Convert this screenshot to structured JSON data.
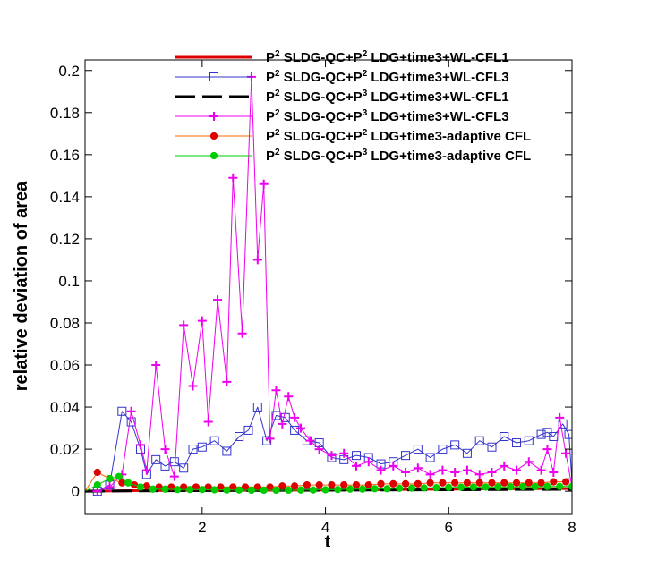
{
  "chart_data": {
    "type": "line",
    "xlabel": "t",
    "ylabel": "relative deviation of area",
    "xlim": [
      0.1,
      8.0
    ],
    "ylim": [
      -0.011,
      0.205
    ],
    "xticks": [
      {
        "v": 2,
        "label": "2"
      },
      {
        "v": 4,
        "label": "4"
      },
      {
        "v": 6,
        "label": "6"
      },
      {
        "v": 8,
        "label": "8"
      }
    ],
    "yticks": [
      {
        "v": 0,
        "label": "0"
      },
      {
        "v": 0.02,
        "label": "0.02"
      },
      {
        "v": 0.04,
        "label": "0.04"
      },
      {
        "v": 0.06,
        "label": "0.06"
      },
      {
        "v": 0.08,
        "label": "0.08"
      },
      {
        "v": 0.1,
        "label": "0.1"
      },
      {
        "v": 0.12,
        "label": "0.12"
      },
      {
        "v": 0.14,
        "label": "0.14"
      },
      {
        "v": 0.16,
        "label": "0.16"
      },
      {
        "v": 0.18,
        "label": "0.18"
      },
      {
        "v": 0.2,
        "label": "0.2"
      }
    ],
    "grid": false,
    "legend_position": "top-right",
    "series": [
      {
        "label_parts": [
          "P",
          "2",
          " SLDG-QC+P",
          "2",
          " LDG+time3+WL-CFL1"
        ],
        "color": "#dd0000",
        "dash": "",
        "width": 3,
        "marker": "none",
        "x": [
          0.1,
          1,
          2,
          3,
          4,
          5,
          6,
          7,
          8
        ],
        "y": [
          0,
          0.0003,
          0.0004,
          0.0005,
          0.0006,
          0.0008,
          0.001,
          0.0012,
          0.0013
        ]
      },
      {
        "label_parts": [
          "P",
          "2",
          " SLDG-QC+P",
          "2",
          " LDG+time3+WL-CFL3"
        ],
        "color": "#3333cc",
        "dash": "",
        "width": 1,
        "marker": "square",
        "x": [
          0.1,
          0.3,
          0.5,
          0.7,
          0.85,
          1.0,
          1.1,
          1.25,
          1.4,
          1.55,
          1.7,
          1.85,
          2.0,
          2.2,
          2.4,
          2.6,
          2.75,
          2.9,
          3.05,
          3.2,
          3.35,
          3.5,
          3.7,
          3.9,
          4.1,
          4.3,
          4.5,
          4.7,
          4.9,
          5.1,
          5.3,
          5.5,
          5.7,
          5.9,
          6.1,
          6.3,
          6.5,
          6.7,
          6.9,
          7.1,
          7.3,
          7.5,
          7.6,
          7.7,
          7.85,
          7.95,
          8.0
        ],
        "y": [
          0,
          0.0,
          0.003,
          0.038,
          0.033,
          0.02,
          0.008,
          0.015,
          0.012,
          0.014,
          0.011,
          0.02,
          0.021,
          0.024,
          0.019,
          0.026,
          0.029,
          0.04,
          0.024,
          0.036,
          0.035,
          0.029,
          0.024,
          0.023,
          0.016,
          0.015,
          0.017,
          0.016,
          0.013,
          0.014,
          0.017,
          0.02,
          0.016,
          0.02,
          0.022,
          0.018,
          0.024,
          0.021,
          0.026,
          0.023,
          0.024,
          0.027,
          0.028,
          0.026,
          0.032,
          0.027,
          0.004
        ]
      },
      {
        "label_parts": [
          "P",
          "2",
          " SLDG-QC+P",
          "3",
          " LDG+time3+WL-CFL1"
        ],
        "color": "#000000",
        "dash": "22,8",
        "width": 3,
        "marker": "none",
        "x": [
          0.1,
          1,
          2,
          3,
          4,
          5,
          6,
          7,
          8
        ],
        "y": [
          0,
          0.0002,
          0.0003,
          0.0004,
          0.0005,
          0.0006,
          0.0007,
          0.0008,
          0.0009
        ]
      },
      {
        "label_parts": [
          "P",
          "2",
          " SLDG-QC+P",
          "3",
          " LDG+time3+WL-CFL3"
        ],
        "color": "#ee00ee",
        "dash": "",
        "width": 1,
        "marker": "plus",
        "x": [
          0.1,
          0.3,
          0.5,
          0.7,
          0.85,
          1.0,
          1.1,
          1.25,
          1.4,
          1.55,
          1.7,
          1.85,
          2.0,
          2.1,
          2.25,
          2.4,
          2.5,
          2.65,
          2.8,
          2.9,
          3.0,
          3.1,
          3.2,
          3.3,
          3.4,
          3.5,
          3.6,
          3.75,
          3.9,
          4.1,
          4.3,
          4.5,
          4.7,
          4.9,
          5.1,
          5.3,
          5.5,
          5.7,
          5.9,
          6.1,
          6.3,
          6.5,
          6.7,
          6.9,
          7.1,
          7.3,
          7.5,
          7.6,
          7.7,
          7.8,
          7.9,
          8.0
        ],
        "y": [
          0,
          0.0,
          0.002,
          0.008,
          0.038,
          0.022,
          0.01,
          0.06,
          0.02,
          0.007,
          0.079,
          0.05,
          0.081,
          0.033,
          0.091,
          0.052,
          0.149,
          0.075,
          0.197,
          0.11,
          0.146,
          0.025,
          0.048,
          0.032,
          0.045,
          0.035,
          0.03,
          0.024,
          0.02,
          0.017,
          0.018,
          0.012,
          0.014,
          0.01,
          0.012,
          0.009,
          0.011,
          0.008,
          0.01,
          0.009,
          0.01,
          0.008,
          0.009,
          0.012,
          0.01,
          0.014,
          0.01,
          0.02,
          0.009,
          0.035,
          0.018,
          0.002
        ]
      },
      {
        "label_parts": [
          "P",
          "2",
          " SLDG-QC+P",
          "2",
          " LDG+time3-adaptive CFL"
        ],
        "color": "#ff6600",
        "dash": "",
        "width": 1,
        "marker": "circle",
        "marker_color": "#dd0000",
        "x": [
          0.1,
          0.3,
          0.5,
          0.7,
          0.9,
          1.1,
          1.3,
          1.5,
          1.7,
          1.9,
          2.1,
          2.3,
          2.5,
          2.7,
          2.9,
          3.1,
          3.3,
          3.5,
          3.7,
          3.9,
          4.1,
          4.3,
          4.5,
          4.7,
          4.9,
          5.1,
          5.3,
          5.5,
          5.7,
          5.9,
          6.1,
          6.3,
          6.5,
          6.7,
          6.9,
          7.1,
          7.3,
          7.5,
          7.7,
          7.9
        ],
        "y": [
          0,
          0.009,
          0.006,
          0.004,
          0.003,
          0.0025,
          0.002,
          0.002,
          0.002,
          0.002,
          0.002,
          0.002,
          0.002,
          0.002,
          0.002,
          0.002,
          0.0025,
          0.0025,
          0.003,
          0.003,
          0.003,
          0.003,
          0.003,
          0.003,
          0.0035,
          0.0035,
          0.0035,
          0.0035,
          0.004,
          0.004,
          0.004,
          0.004,
          0.004,
          0.004,
          0.004,
          0.004,
          0.004,
          0.004,
          0.0045,
          0.0045
        ]
      },
      {
        "label_parts": [
          "P",
          "2",
          " SLDG-QC+P",
          "3",
          " LDG+time3-adaptive CFL"
        ],
        "color": "#00cc00",
        "dash": "",
        "width": 1,
        "marker": "circle",
        "marker_color": "#00cc00",
        "x": [
          0.1,
          0.3,
          0.5,
          0.65,
          0.8,
          1.0,
          1.2,
          1.4,
          1.6,
          1.8,
          2.0,
          2.2,
          2.4,
          2.6,
          2.8,
          3.0,
          3.2,
          3.4,
          3.6,
          3.8,
          4.0,
          4.2,
          4.4,
          4.6,
          4.8,
          5.0,
          5.2,
          5.4,
          5.6,
          5.8,
          6.0,
          6.2,
          6.4,
          6.6,
          6.8,
          7.0,
          7.2,
          7.4,
          7.6,
          7.8,
          8.0
        ],
        "y": [
          0,
          0.003,
          0.006,
          0.007,
          0.004,
          0.002,
          0.001,
          0.001,
          0.0008,
          0.0008,
          0.0008,
          0.0007,
          0.0006,
          0.0006,
          0.0005,
          0.0005,
          0.0005,
          0.0005,
          0.0006,
          0.0006,
          0.0007,
          0.0008,
          0.001,
          0.001,
          0.0012,
          0.0012,
          0.0014,
          0.0015,
          0.0016,
          0.0017,
          0.0018,
          0.0019,
          0.002,
          0.002,
          0.0021,
          0.0021,
          0.0022,
          0.0022,
          0.0023,
          0.0023,
          0.0023
        ]
      }
    ]
  }
}
